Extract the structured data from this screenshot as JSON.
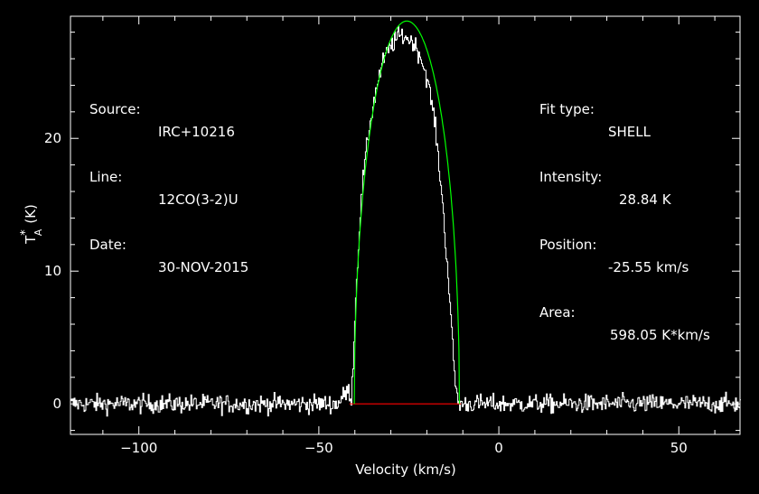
{
  "header_left": {
    "source_label": "Source:",
    "source_value": "IRC+10216",
    "line_label": "Line:",
    "line_value": "12CO(3-2)U",
    "date_label": "Date:",
    "date_value": "30-NOV-2015"
  },
  "header_right": {
    "fit_label": "Fit type:",
    "fit_value": "SHELL",
    "intensity_label": "Intensity:",
    "intensity_value": "28.84 K",
    "position_label": "Position:",
    "position_value": "-25.55 km/s",
    "area_label": "Area:",
    "area_value": "598.05 K*km/s"
  },
  "chart_data": {
    "type": "line",
    "xlabel": "Velocity (km/s)",
    "ylabel_main": "T",
    "ylabel_sup": "*",
    "ylabel_sub": "A",
    "ylabel_unit": "(K)",
    "xlim": [
      -119,
      67
    ],
    "ylim": [
      -2.3,
      29.2
    ],
    "xticks": [
      -100,
      -50,
      0,
      50
    ],
    "xtick_labels": [
      "−100",
      "−50",
      "0",
      "50"
    ],
    "yticks": [
      0,
      10,
      20
    ],
    "ytick_labels": [
      "0",
      "10",
      "20"
    ],
    "colors": {
      "data": "#ffffff",
      "fit": "#00ff00",
      "baseline": "#ff0000",
      "axes": "#ffffff"
    },
    "series": [
      {
        "name": "spectrum",
        "style": "noisy-histogram",
        "x": [
          -119,
          -45,
          -42,
          -41,
          -40,
          -39,
          -38,
          -36,
          -34,
          -32,
          -30,
          -28,
          -26,
          -25.5,
          -24,
          -22,
          -20,
          -18,
          -16,
          -14,
          -13,
          -12,
          -11.5,
          -11,
          -10,
          -5,
          67
        ],
        "y": [
          0,
          0,
          1.0,
          0.5,
          7.0,
          12.5,
          16.5,
          21.0,
          24.0,
          26.0,
          27.0,
          27.7,
          27.7,
          27.5,
          27.3,
          26.3,
          24.5,
          21.5,
          16.0,
          9.0,
          4.5,
          1.0,
          0.3,
          0,
          0,
          0,
          0
        ],
        "noise": 0.35
      },
      {
        "name": "fit",
        "style": "shell",
        "center": -25.55,
        "peak": 28.84,
        "half_width": 14.6
      },
      {
        "name": "baseline",
        "style": "segment",
        "x": [
          -41.5,
          -10.5
        ],
        "y": [
          0,
          0
        ]
      }
    ]
  }
}
